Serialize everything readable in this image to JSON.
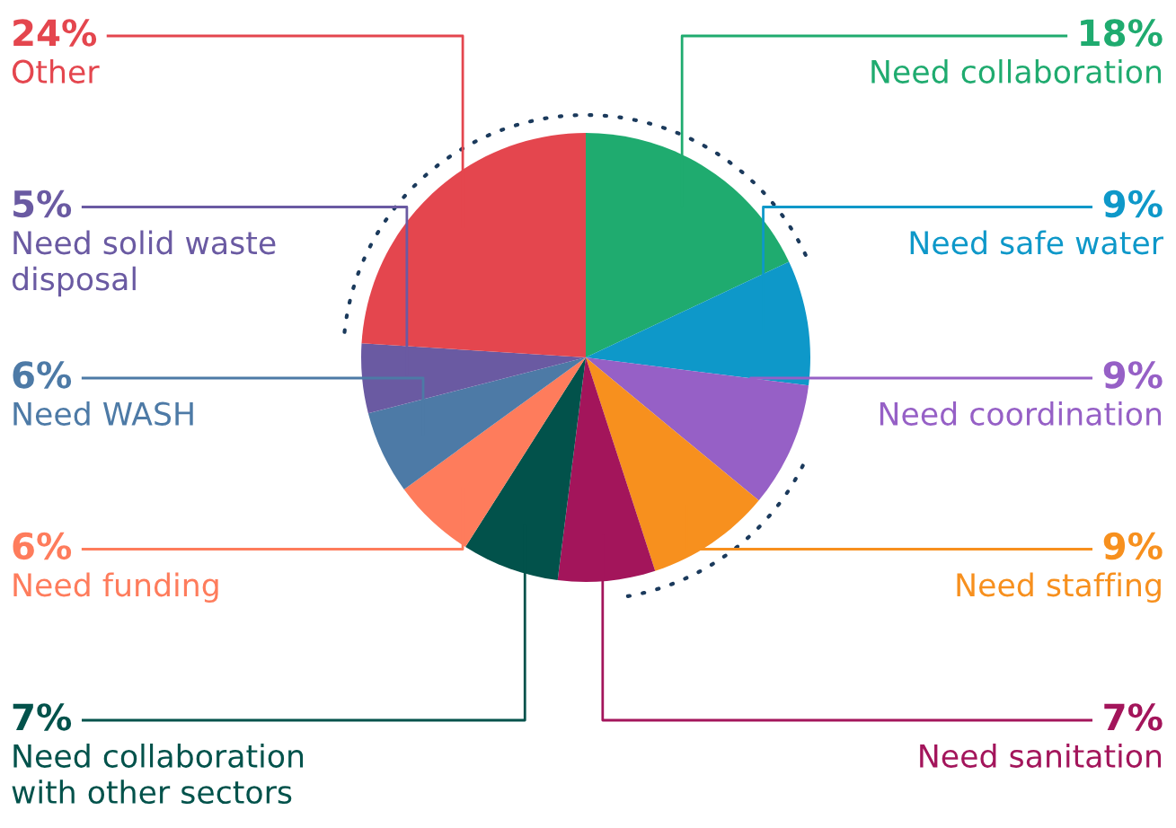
{
  "chart_data": {
    "type": "pie",
    "categories": [
      "Need collaboration",
      "Need safe water",
      "Need coordination",
      "Need staffing",
      "Need sanitation",
      "Need collaboration\nwith other sectors",
      "Need funding",
      "Need WASH",
      "Need solid waste\ndisposal",
      "Other"
    ],
    "values": [
      18,
      9,
      9,
      9,
      7,
      7,
      6,
      6,
      5,
      24
    ],
    "value_labels": [
      "18%",
      "9%",
      "9%",
      "9%",
      "7%",
      "7%",
      "6%",
      "6%",
      "5%",
      "24%"
    ],
    "colors": [
      "#1fab6f",
      "#0e98c9",
      "#9660c6",
      "#f7901e",
      "#a3155b",
      "#02524b",
      "#fe7c5c",
      "#4d7aa6",
      "#6a5aa2",
      "#e4464e"
    ]
  }
}
